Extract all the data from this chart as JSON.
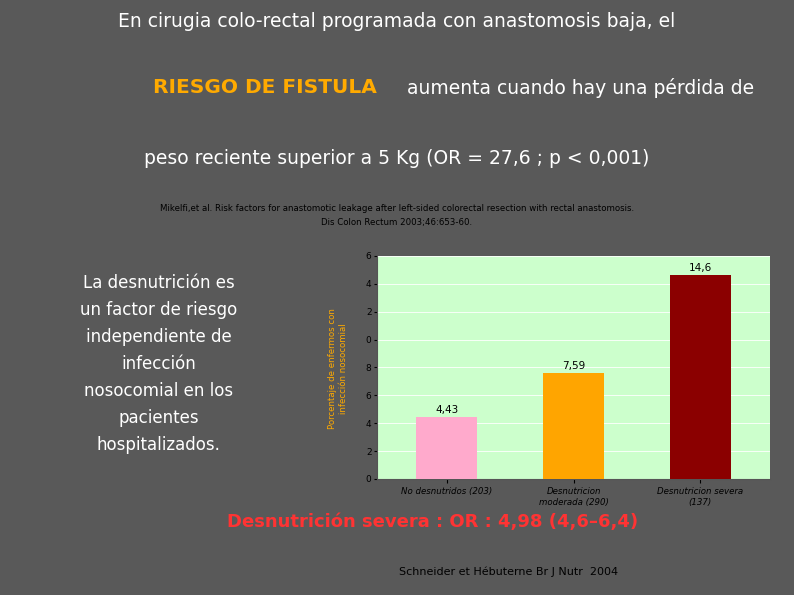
{
  "bg_color": "#595959",
  "title_line1": "En cirugia colo-rectal programada con anastomosis baja, el",
  "title_line2_orange": "RIESGO DE FISTULA",
  "title_line2_white": " aumenta cuando hay una pérdida de",
  "title_line3": "peso reciente superior a 5 Kg (OR = 27,6 ; p < 0,001)",
  "ref_line1": "Mikelfi,et al. Risk factors for anastomotic leakage after left-sided colorectal resection with rectal anastomosis.",
  "ref_line2": "Dis Colon Rectum 2003;46:653-60.",
  "ref_bg": "#b8cfe0",
  "ref_border": "#6688aa",
  "sep_color": "#ffffff",
  "left_text": "La desnutrición es\nun factor de riesgo\nindependiente de\ninfección\nnosocomial en los\npacientes\nhospitalizados.",
  "ylabel": "Porcentaje de enfermos con\ninfección nosocomial",
  "ylabel_color": "#ffaa00",
  "categories": [
    "No desnutridos (203)",
    "Desnutricion\nmoderada (290)",
    "Desnutricion severa\n(137)"
  ],
  "values": [
    4.43,
    7.59,
    14.6
  ],
  "bar_colors": [
    "#ffaacc",
    "#ffa500",
    "#8b0000"
  ],
  "bar_bg_color": "#ccffcc",
  "value_labels": [
    "4,43",
    "7,59",
    "14,6"
  ],
  "ytick_labels": [
    "0",
    "2",
    "4",
    "6",
    "8",
    "0",
    "2",
    "4",
    "6"
  ],
  "ytick_positions": [
    0,
    2,
    4,
    6,
    8,
    10,
    12,
    14,
    16
  ],
  "ylim": [
    0,
    16
  ],
  "bottom_text": "Desnutrición severa : OR : 4,98 (4,6–6,4)",
  "bottom_bg": "#00007a",
  "bottom_text_color": "#ff3333",
  "source_text": "Schneider et Hébuterne Br J Nutr  2004",
  "source_bg": "#b8cfe0",
  "source_border": "#6688aa"
}
